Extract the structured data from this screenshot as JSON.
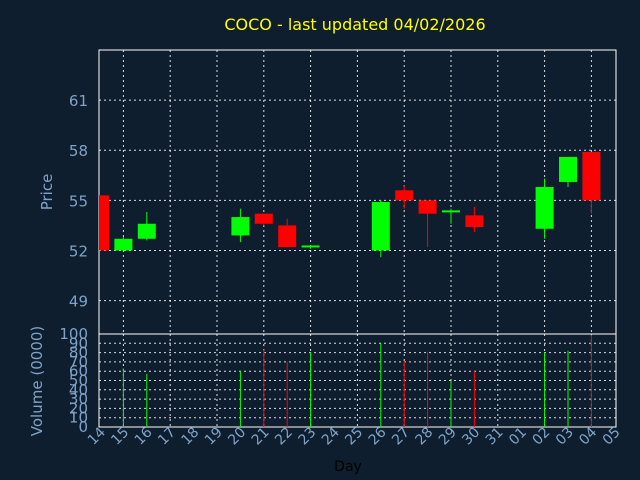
{
  "title": "COCO - last updated 04/02/2026",
  "colors": {
    "background": "#0f1e2e",
    "up": "#00ff00",
    "down": "#ff0000",
    "title": "#ffff00",
    "axis_text": "#7fa3c8",
    "grid": "#ffffff"
  },
  "chart_data": [
    {
      "type": "candlestick",
      "ylabel": "Price",
      "yticks": [
        "49",
        "52",
        "55",
        "58",
        "61"
      ],
      "ylim": [
        47,
        64
      ],
      "grid": true,
      "x_days": [
        "14",
        "15",
        "16",
        "17",
        "18",
        "19",
        "20",
        "21",
        "22",
        "23",
        "24",
        "25",
        "26",
        "27",
        "28",
        "29",
        "30",
        "31",
        "01",
        "02",
        "03",
        "04",
        "05"
      ],
      "candles": [
        {
          "day": "14",
          "open": 55.3,
          "high": 55.3,
          "low": 52.0,
          "close": 52.0
        },
        {
          "day": "15",
          "open": 52.0,
          "high": 52.8,
          "low": 52.0,
          "close": 52.7
        },
        {
          "day": "16",
          "open": 52.7,
          "high": 54.3,
          "low": 52.6,
          "close": 53.6
        },
        {
          "day": "20",
          "open": 52.9,
          "high": 54.5,
          "low": 52.5,
          "close": 54.0
        },
        {
          "day": "21",
          "open": 54.2,
          "high": 54.2,
          "low": 53.5,
          "close": 53.6
        },
        {
          "day": "22",
          "open": 53.5,
          "high": 53.9,
          "low": 52.2,
          "close": 52.2
        },
        {
          "day": "23",
          "open": 52.2,
          "high": 52.3,
          "low": 52.1,
          "close": 52.3
        },
        {
          "day": "26",
          "open": 52.0,
          "high": 55.0,
          "low": 51.6,
          "close": 54.9
        },
        {
          "day": "27",
          "open": 55.6,
          "high": 55.9,
          "low": 54.5,
          "close": 55.0
        },
        {
          "day": "28",
          "open": 55.0,
          "high": 55.0,
          "low": 52.2,
          "close": 54.2
        },
        {
          "day": "29",
          "open": 54.3,
          "high": 54.5,
          "low": 53.6,
          "close": 54.4
        },
        {
          "day": "30",
          "open": 54.1,
          "high": 54.6,
          "low": 53.1,
          "close": 53.4
        },
        {
          "day": "02",
          "open": 53.3,
          "high": 56.3,
          "low": 52.7,
          "close": 55.8
        },
        {
          "day": "03",
          "open": 56.1,
          "high": 57.6,
          "low": 55.8,
          "close": 57.6
        },
        {
          "day": "04",
          "open": 57.9,
          "high": 57.9,
          "low": 54.2,
          "close": 55.0
        }
      ]
    },
    {
      "type": "bar",
      "ylabel": "Volume (0000)",
      "xlabel": "Day",
      "yticks": [
        "0",
        "10",
        "20",
        "30",
        "40",
        "50",
        "60",
        "70",
        "80",
        "90",
        "100"
      ],
      "ylim": [
        0,
        100
      ],
      "volumes": [
        {
          "day": "15",
          "value": 63,
          "dir": "up"
        },
        {
          "day": "16",
          "value": 57,
          "dir": "up"
        },
        {
          "day": "20",
          "value": 60,
          "dir": "up"
        },
        {
          "day": "21",
          "value": 83,
          "dir": "down"
        },
        {
          "day": "22",
          "value": 70,
          "dir": "down"
        },
        {
          "day": "23",
          "value": 80,
          "dir": "up"
        },
        {
          "day": "26",
          "value": 90,
          "dir": "up"
        },
        {
          "day": "27",
          "value": 71,
          "dir": "down"
        },
        {
          "day": "28",
          "value": 81,
          "dir": "down"
        },
        {
          "day": "29",
          "value": 50,
          "dir": "up"
        },
        {
          "day": "30",
          "value": 60,
          "dir": "down"
        },
        {
          "day": "02",
          "value": 80,
          "dir": "up"
        },
        {
          "day": "03",
          "value": 82,
          "dir": "up"
        },
        {
          "day": "04",
          "value": 99,
          "dir": "down"
        }
      ]
    }
  ]
}
